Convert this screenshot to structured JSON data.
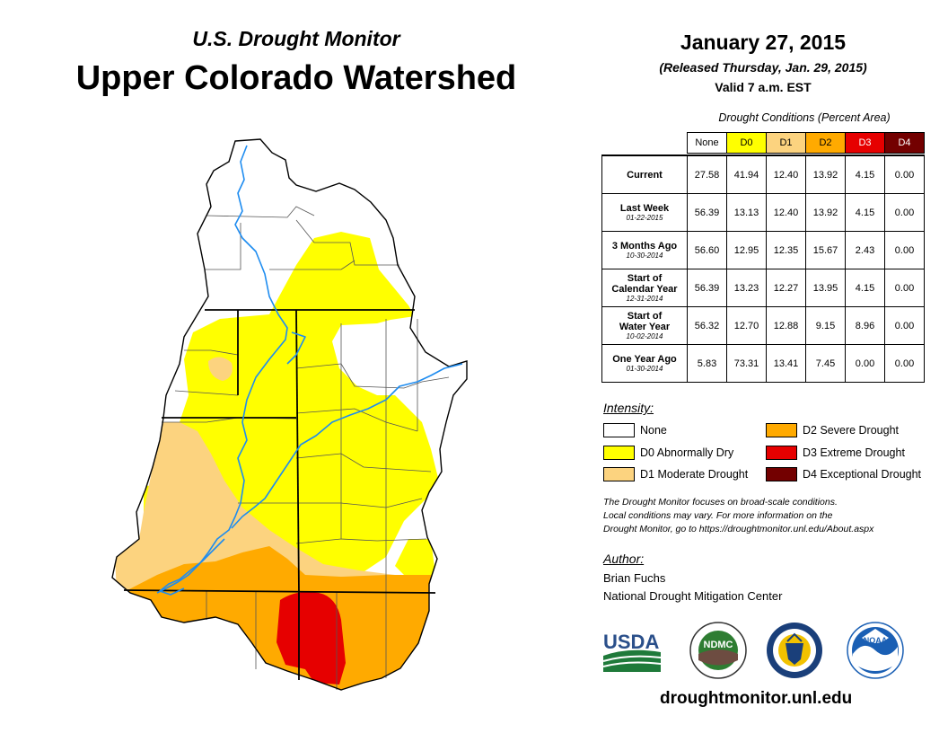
{
  "header": {
    "subtitle": "U.S. Drought Monitor",
    "title": "Upper Colorado Watershed",
    "date": "January 27, 2015",
    "released": "(Released Thursday, Jan. 29, 2015)",
    "valid": "Valid 7 a.m. EST"
  },
  "table": {
    "caption": "Drought Conditions (Percent Area)",
    "columns": [
      "None",
      "D0",
      "D1",
      "D2",
      "D3",
      "D4"
    ],
    "rows": [
      {
        "label": "Current",
        "label2": "",
        "date": "",
        "values": [
          "27.58",
          "41.94",
          "12.40",
          "13.92",
          "4.15",
          "0.00"
        ]
      },
      {
        "label": "Last Week",
        "label2": "",
        "date": "01-22-2015",
        "values": [
          "56.39",
          "13.13",
          "12.40",
          "13.92",
          "4.15",
          "0.00"
        ]
      },
      {
        "label": "3 Months Ago",
        "label2": "",
        "date": "10-30-2014",
        "values": [
          "56.60",
          "12.95",
          "12.35",
          "15.67",
          "2.43",
          "0.00"
        ]
      },
      {
        "label": "Start of",
        "label2": "Calendar Year",
        "date": "12-31-2014",
        "values": [
          "56.39",
          "13.23",
          "12.27",
          "13.95",
          "4.15",
          "0.00"
        ]
      },
      {
        "label": "Start of",
        "label2": "Water Year",
        "date": "10-02-2014",
        "values": [
          "56.32",
          "12.70",
          "12.88",
          "9.15",
          "8.96",
          "0.00"
        ]
      },
      {
        "label": "One Year Ago",
        "label2": "",
        "date": "01-30-2014",
        "values": [
          "5.83",
          "73.31",
          "13.41",
          "7.45",
          "0.00",
          "0.00"
        ]
      }
    ]
  },
  "legend": {
    "title": "Intensity:",
    "items": [
      {
        "label": "None",
        "color": "#ffffff"
      },
      {
        "label": "D0 Abnormally Dry",
        "color": "#ffff00"
      },
      {
        "label": "D1 Moderate Drought",
        "color": "#fcd37f"
      },
      {
        "label": "D2 Severe Drought",
        "color": "#ffaa00"
      },
      {
        "label": "D3 Extreme Drought",
        "color": "#e60000"
      },
      {
        "label": "D4 Exceptional Drought",
        "color": "#730000"
      }
    ]
  },
  "note": {
    "line1": "The Drought Monitor focuses on broad-scale conditions.",
    "line2": "Local conditions may vary. For more information on the",
    "line3": "Drought Monitor, go to https://droughtmonitor.unl.edu/About.aspx"
  },
  "author": {
    "label": "Author:",
    "name": "Brian Fuchs",
    "org": "National Drought Mitigation Center"
  },
  "logos": {
    "usda": "USDA",
    "ndmc": "NDMC",
    "noaa": "NOAA"
  },
  "website": "droughtmonitor.unl.edu",
  "colors": {
    "river": "#1e8cf0",
    "none": "#ffffff",
    "d0": "#ffff00",
    "d1": "#fcd37f",
    "d2": "#ffaa00",
    "d3": "#e60000",
    "d4": "#730000"
  }
}
